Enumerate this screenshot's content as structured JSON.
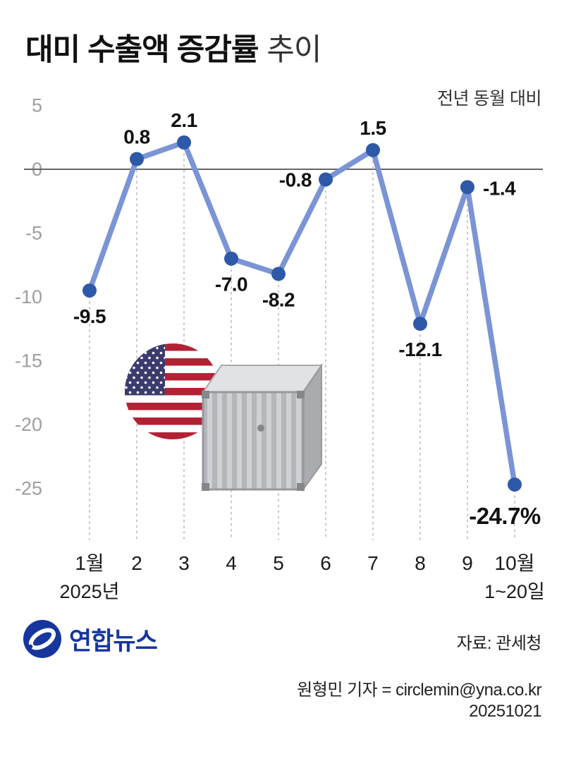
{
  "header": {
    "title_main": "대미 수출액 증감률",
    "title_sub": "추이",
    "note": "전년 동월 대비"
  },
  "chart_data": {
    "type": "line",
    "title": "대미 수출액 증감률 추이",
    "subtitle": "전년 동월 대비",
    "unit": "%",
    "categories": [
      "1월",
      "2",
      "3",
      "4",
      "5",
      "6",
      "7",
      "8",
      "9",
      "10월"
    ],
    "values": [
      -9.5,
      0.8,
      2.1,
      -7.0,
      -8.2,
      -0.8,
      1.5,
      -12.1,
      -1.4,
      -24.7
    ],
    "point_labels": [
      "-9.5",
      "0.8",
      "2.1",
      "-7.0",
      "-8.2",
      "-0.8",
      "1.5",
      "-12.1",
      "-1.4",
      "-24.7%"
    ],
    "label_positions": [
      "below",
      "above",
      "above",
      "below",
      "below",
      "left",
      "above",
      "below",
      "right",
      "below-big"
    ],
    "y_ticks": [
      5,
      0,
      -5,
      -10,
      -15,
      -20,
      -25
    ],
    "ylim": [
      -27.5,
      5
    ],
    "x_sub_label_first": "2025년",
    "x_sub_label_last": "1~20일",
    "grid": "dashed-vertical",
    "legend": "none",
    "line_color": "#7b94d6",
    "dot_color": "#2e59a8",
    "tick_color": "#9e9e9e",
    "label_color": "#111111",
    "zero_line_color": "#666666",
    "icons": [
      "us-flag-icon",
      "shipping-container-icon"
    ]
  },
  "footer": {
    "logo_text": "연합뉴스",
    "source": "자료: 관세청",
    "credit": "원형민 기자 = circlemin@yna.co.kr",
    "date": "20251021"
  }
}
